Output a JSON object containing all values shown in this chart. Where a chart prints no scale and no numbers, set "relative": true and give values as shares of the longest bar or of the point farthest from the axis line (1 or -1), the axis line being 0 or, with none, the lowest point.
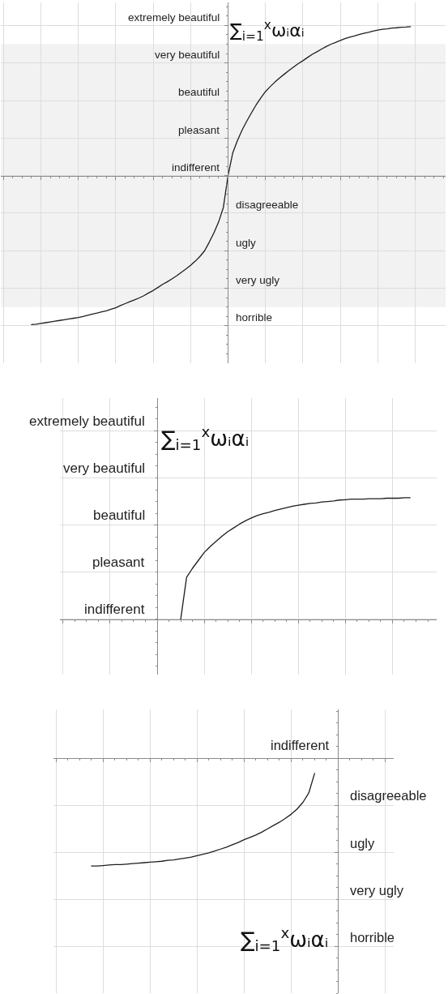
{
  "chart_data": [
    {
      "type": "line",
      "relative": true,
      "categories": [
        null,
        null,
        null,
        null,
        null,
        null,
        null,
        null,
        null,
        null,
        null,
        null,
        null,
        null,
        null,
        null,
        null,
        null,
        null,
        null,
        null,
        null,
        null,
        null,
        null,
        null,
        null,
        null,
        null,
        null,
        null,
        null,
        null,
        null,
        null,
        null,
        null,
        null,
        null,
        null,
        null,
        null,
        null,
        null,
        null,
        null,
        null,
        null,
        null,
        null,
        null,
        null,
        null,
        null,
        null,
        null,
        null,
        null,
        null,
        null,
        null,
        null,
        null,
        null,
        null,
        null,
        null,
        null,
        null,
        null,
        null,
        null,
        null,
        null,
        null,
        null,
        null,
        null,
        null,
        null,
        null,
        null,
        null,
        null,
        null,
        null,
        null,
        null,
        null,
        null,
        null,
        null,
        null,
        null,
        null
      ],
      "series": [
        {
          "color": "#1e1e1e",
          "values": [
            null,
            null,
            null,
            null,
            null,
            null,
            -1,
            -0.997,
            -0.992,
            -0.987,
            -0.982,
            -0.977,
            -0.972,
            -0.967,
            -0.962,
            -0.957,
            -0.952,
            -0.945,
            -0.937,
            -0.929,
            -0.922,
            -0.914,
            -0.907,
            -0.897,
            -0.887,
            -0.872,
            -0.859,
            -0.846,
            -0.834,
            -0.821,
            -0.806,
            -0.788,
            -0.771,
            -0.751,
            -0.73,
            -0.713,
            -0.693,
            -0.673,
            -0.65,
            -0.627,
            -0.602,
            -0.574,
            -0.542,
            -0.504,
            -0.446,
            -0.383,
            -0.31,
            -0.214,
            0,
            0.151,
            0.234,
            0.305,
            0.365,
            0.421,
            0.474,
            0.521,
            0.564,
            0.597,
            0.627,
            0.655,
            0.68,
            0.705,
            0.728,
            0.751,
            0.771,
            0.793,
            0.814,
            0.831,
            0.849,
            0.866,
            0.882,
            0.894,
            0.907,
            0.919,
            0.929,
            0.937,
            0.947,
            0.955,
            0.962,
            0.97,
            0.977,
            0.982,
            0.985,
            0.99,
            0.992,
            0.995,
            0.997,
            1,
            null,
            null,
            null,
            null,
            null,
            null,
            null
          ]
        }
      ],
      "bands": [
        {
          "axis": "y",
          "from": -0.882,
          "to": 0.882,
          "color": "#f2f2f2"
        }
      ],
      "grid": true,
      "annotations": [
        "extremely beautiful",
        "very beautiful",
        "beautiful",
        "pleasant",
        "indifferent",
        "disagreeable",
        "ugly",
        "very ugly",
        "horrible",
        "∑$_{i=1}$$^{x}$ωᵢαᵢ"
      ]
    },
    {
      "type": "line",
      "relative": true,
      "categories": [
        null,
        null,
        null,
        null,
        null,
        null,
        null,
        null,
        null,
        null,
        null,
        null,
        null,
        null,
        null,
        null,
        null,
        null,
        null,
        null,
        null,
        null,
        null,
        null,
        null,
        null,
        null,
        null,
        null,
        null,
        null,
        null,
        null,
        null,
        null,
        null,
        null,
        null,
        null,
        null,
        null,
        null,
        null,
        null,
        null,
        null,
        null,
        null,
        null,
        null,
        null,
        null,
        null,
        null,
        null,
        null,
        null,
        null,
        null,
        null,
        null,
        null,
        null,
        null
      ],
      "series": [
        {
          "color": "#1e1e1e",
          "values": [
            null,
            null,
            null,
            null,
            null,
            null,
            null,
            null,
            null,
            null,
            null,
            null,
            null,
            null,
            null,
            null,
            null,
            null,
            null,
            null,
            0,
            0.345,
            0.419,
            0.484,
            0.55,
            0.597,
            0.64,
            0.682,
            0.721,
            0.752,
            0.783,
            0.81,
            0.833,
            0.853,
            0.868,
            0.88,
            0.895,
            0.907,
            0.919,
            0.93,
            0.938,
            0.946,
            0.953,
            0.957,
            0.965,
            0.969,
            0.973,
            0.981,
            0.984,
            0.988,
            0.988,
            0.988,
            0.992,
            0.992,
            0.992,
            0.996,
            0.996,
            0.996,
            1,
            1,
            null,
            null,
            null,
            null
          ]
        }
      ],
      "grid": true,
      "annotations": [
        "extremely beautiful",
        "very beautiful",
        "beautiful",
        "pleasant",
        "indifferent",
        "∑$_{i=1}$$^{x}$ωᵢαᵢ"
      ]
    },
    {
      "type": "line",
      "relative": true,
      "categories": [
        null,
        null,
        null,
        null,
        null,
        null,
        null,
        null,
        null,
        null,
        null,
        null,
        null,
        null,
        null,
        null,
        null,
        null,
        null,
        null,
        null,
        null,
        null,
        null,
        null,
        null,
        null,
        null,
        null,
        null,
        null,
        null,
        null,
        null,
        null,
        null,
        null,
        null,
        null,
        null,
        null,
        null,
        null,
        null,
        null,
        null,
        null,
        null,
        null,
        null,
        null,
        null,
        null,
        null,
        null,
        null,
        null,
        null
      ],
      "series": [
        {
          "color": "#1e1e1e",
          "values": [
            null,
            null,
            null,
            null,
            null,
            null,
            -1,
            -1,
            -0.996,
            -0.991,
            -0.987,
            -0.987,
            -0.983,
            -0.978,
            -0.974,
            -0.969,
            -0.965,
            -0.961,
            -0.956,
            -0.948,
            -0.943,
            -0.934,
            -0.926,
            -0.917,
            -0.904,
            -0.891,
            -0.878,
            -0.86,
            -0.843,
            -0.825,
            -0.803,
            -0.782,
            -0.755,
            -0.734,
            -0.712,
            -0.686,
            -0.655,
            -0.624,
            -0.594,
            -0.559,
            -0.52,
            -0.472,
            -0.41,
            -0.323,
            -0.14,
            null,
            null,
            null,
            null,
            null,
            null,
            null,
            null,
            null,
            null,
            null,
            null,
            null
          ]
        }
      ],
      "grid": true,
      "annotations": [
        "indifferent",
        "disagreeable",
        "ugly",
        "very ugly",
        "horrible",
        "∑$_{i=1}$$^{x}$ωᵢαᵢ"
      ]
    }
  ]
}
